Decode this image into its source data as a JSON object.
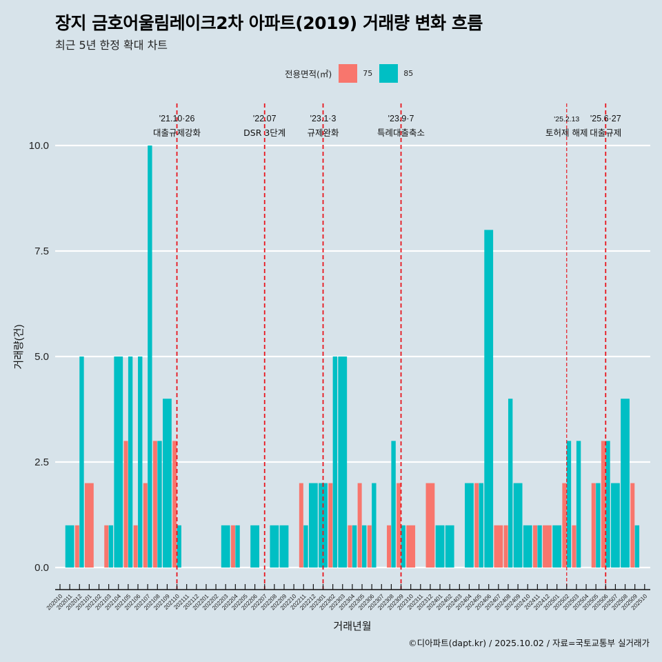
{
  "header": {
    "title": "장지 금호어울림레이크2차 아파트(2019) 거래량 변화 흐름",
    "subtitle": "최근 5년 한정 확대 차트"
  },
  "legend": {
    "title": "전용면적(㎡)",
    "items": [
      {
        "label": "75",
        "color": "#f8766d"
      },
      {
        "label": "85",
        "color": "#00bfc4"
      }
    ]
  },
  "footer": "©디아파트(dapt.kr) / 2025.10.02 / 자료=국토교통부 실거래가",
  "chart_data": {
    "type": "bar",
    "title": "장지 금호어울림레이크2차 아파트(2019) 거래량 변화 흐름",
    "subtitle": "최근 5년 한정 확대 차트",
    "xlabel": "거래년월",
    "ylabel": "거래량(건)",
    "ylim": [
      -0.5,
      11
    ],
    "yticks": [
      0.0,
      2.5,
      5.0,
      7.5,
      10.0
    ],
    "ytick_labels": [
      "0.0",
      "2.5",
      "5.0",
      "7.5",
      "10.0"
    ],
    "grid": "horizontal major",
    "legend_position": "top",
    "categories": [
      "202010",
      "202011",
      "202012",
      "202101",
      "202102",
      "202103",
      "202104",
      "202105",
      "202106",
      "202107",
      "202108",
      "202109",
      "202110",
      "202111",
      "202112",
      "202201",
      "202202",
      "202203",
      "202204",
      "202205",
      "202206",
      "202207",
      "202208",
      "202209",
      "202210",
      "202211",
      "202212",
      "202301",
      "202302",
      "202303",
      "202304",
      "202305",
      "202306",
      "202307",
      "202308",
      "202309",
      "202310",
      "202311",
      "202312",
      "202401",
      "202402",
      "202403",
      "202404",
      "202405",
      "202406",
      "202407",
      "202408",
      "202409",
      "202410",
      "202411",
      "202412",
      "202501",
      "202502",
      "202503",
      "202504",
      "202505",
      "202506",
      "202507",
      "202508",
      "202509",
      "202510"
    ],
    "series": [
      {
        "name": "75",
        "color": "#f8766d",
        "values": [
          0,
          0,
          1,
          2,
          0,
          1,
          0,
          3,
          1,
          2,
          3,
          0,
          3,
          0,
          0,
          0,
          0,
          0,
          1,
          0,
          0,
          0,
          0,
          0,
          0,
          2,
          0,
          0,
          2,
          0,
          1,
          2,
          1,
          0,
          1,
          2,
          1,
          0,
          2,
          0,
          0,
          0,
          0,
          2,
          0,
          1,
          1,
          0,
          0,
          1,
          1,
          0,
          2,
          1,
          0,
          2,
          3,
          0,
          0,
          2,
          0
        ]
      },
      {
        "name": "85",
        "color": "#00bfc4",
        "values": [
          0,
          1,
          5,
          0,
          0,
          1,
          5,
          5,
          5,
          10,
          3,
          4,
          1,
          0,
          0,
          0,
          0,
          1,
          1,
          0,
          1,
          0,
          1,
          1,
          0,
          1,
          2,
          2,
          5,
          5,
          1,
          1,
          2,
          0,
          3,
          1,
          0,
          0,
          0,
          1,
          1,
          0,
          2,
          2,
          8,
          0,
          4,
          2,
          1,
          1,
          0,
          1,
          3,
          3,
          0,
          2,
          3,
          2,
          4,
          1,
          0
        ]
      }
    ],
    "annotations": [
      {
        "x": "202110",
        "date": "'21.10·26",
        "label": "대출규제강화",
        "style": "dashed"
      },
      {
        "x": "202207",
        "date": "'22.07",
        "label": "DSR 3단계",
        "style": "dashed"
      },
      {
        "x": "202301",
        "date": "'23.1·3",
        "label": "규제완화",
        "style": "dashed"
      },
      {
        "x": "202309",
        "date": "'23.9·7",
        "label": "특례대출축소",
        "style": "dashed"
      },
      {
        "x": "202502",
        "date": "'25.2.13",
        "label": "토허제 해제",
        "style": "thin-dashed"
      },
      {
        "x": "202506",
        "date": "'25.6·27",
        "label": "대출규제",
        "style": "dashed"
      }
    ]
  }
}
